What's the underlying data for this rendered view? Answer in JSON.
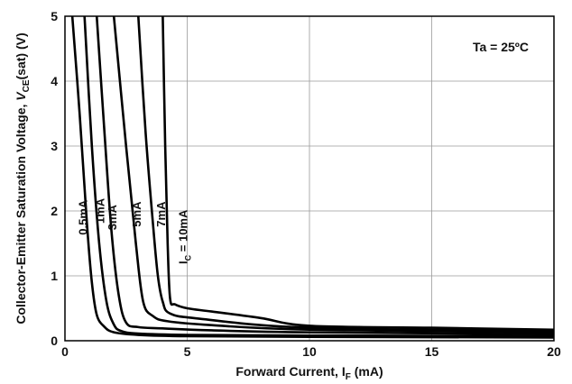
{
  "chart_data": {
    "type": "line",
    "title": "",
    "xlabel": "Forward Current, IF (mA)",
    "ylabel": "Collector-Emitter Saturation Voltage, VCE(sat) (V)",
    "xlabel_parts": {
      "main": "Forward Current, I",
      "sub": "F",
      "tail": " (mA)"
    },
    "ylabel_parts": {
      "main": "Collector-Emitter Saturation Voltage, ",
      "v": "V",
      "sub": "CE",
      "tail": "(sat) (V)"
    },
    "xlim": [
      0,
      20
    ],
    "ylim": [
      0,
      5
    ],
    "xticks": [
      0,
      5,
      10,
      15,
      20
    ],
    "yticks": [
      0,
      1,
      2,
      3,
      4,
      5
    ],
    "grid": true,
    "annotation": "Ta = 25ºC",
    "series": [
      {
        "name": "0.5mA",
        "x": [
          0.3,
          0.6,
          0.9,
          1.1,
          1.3,
          1.6,
          2.0,
          3.0,
          5.0,
          10.0,
          20.0
        ],
        "y": [
          5.0,
          3.5,
          1.8,
          0.9,
          0.4,
          0.22,
          0.13,
          0.09,
          0.07,
          0.06,
          0.05
        ]
      },
      {
        "name": "1mA",
        "x": [
          0.8,
          1.1,
          1.4,
          1.7,
          2.0,
          2.3,
          3.0,
          5.0,
          10.0,
          20.0
        ],
        "y": [
          5.0,
          3.0,
          1.5,
          0.6,
          0.25,
          0.15,
          0.11,
          0.09,
          0.08,
          0.07
        ]
      },
      {
        "name": "3mA",
        "x": [
          1.3,
          1.6,
          1.9,
          2.2,
          2.5,
          3.0,
          4.0,
          6.0,
          10.0,
          20.0
        ],
        "y": [
          5.0,
          3.3,
          1.7,
          0.7,
          0.28,
          0.21,
          0.19,
          0.16,
          0.13,
          0.1
        ]
      },
      {
        "name": "5mA",
        "x": [
          2.0,
          2.5,
          2.9,
          3.2,
          3.6,
          4.2,
          6.0,
          10.0,
          20.0
        ],
        "y": [
          5.0,
          3.0,
          1.5,
          0.6,
          0.38,
          0.3,
          0.24,
          0.17,
          0.13
        ]
      },
      {
        "name": "7mA",
        "x": [
          3.0,
          3.3,
          3.6,
          3.8,
          4.0,
          4.3,
          5.5,
          10.0,
          20.0
        ],
        "y": [
          5.0,
          3.2,
          1.8,
          1.0,
          0.6,
          0.42,
          0.34,
          0.2,
          0.15
        ]
      },
      {
        "name": "IC = 10mA",
        "x": [
          4.0,
          4.1,
          4.2,
          4.3,
          4.5,
          5.0,
          6.0,
          8.0,
          10.0,
          15.0,
          20.0
        ],
        "y": [
          5.0,
          3.0,
          1.5,
          0.65,
          0.56,
          0.5,
          0.45,
          0.35,
          0.23,
          0.2,
          0.17
        ]
      }
    ],
    "series_labels": [
      {
        "text": "0.5mA",
        "x": 0.9,
        "y": 1.9
      },
      {
        "text": "1mA",
        "x": 1.6,
        "y": 2.0
      },
      {
        "text": "3mA",
        "x": 2.1,
        "y": 1.9
      },
      {
        "text": "5mA",
        "x": 3.1,
        "y": 1.95
      },
      {
        "text": "7mA",
        "x": 4.1,
        "y": 1.95
      }
    ],
    "ic_label": {
      "pre": "I",
      "sub": "C",
      "post": " = 10mA",
      "x": 5.0,
      "y": 1.6
    }
  }
}
